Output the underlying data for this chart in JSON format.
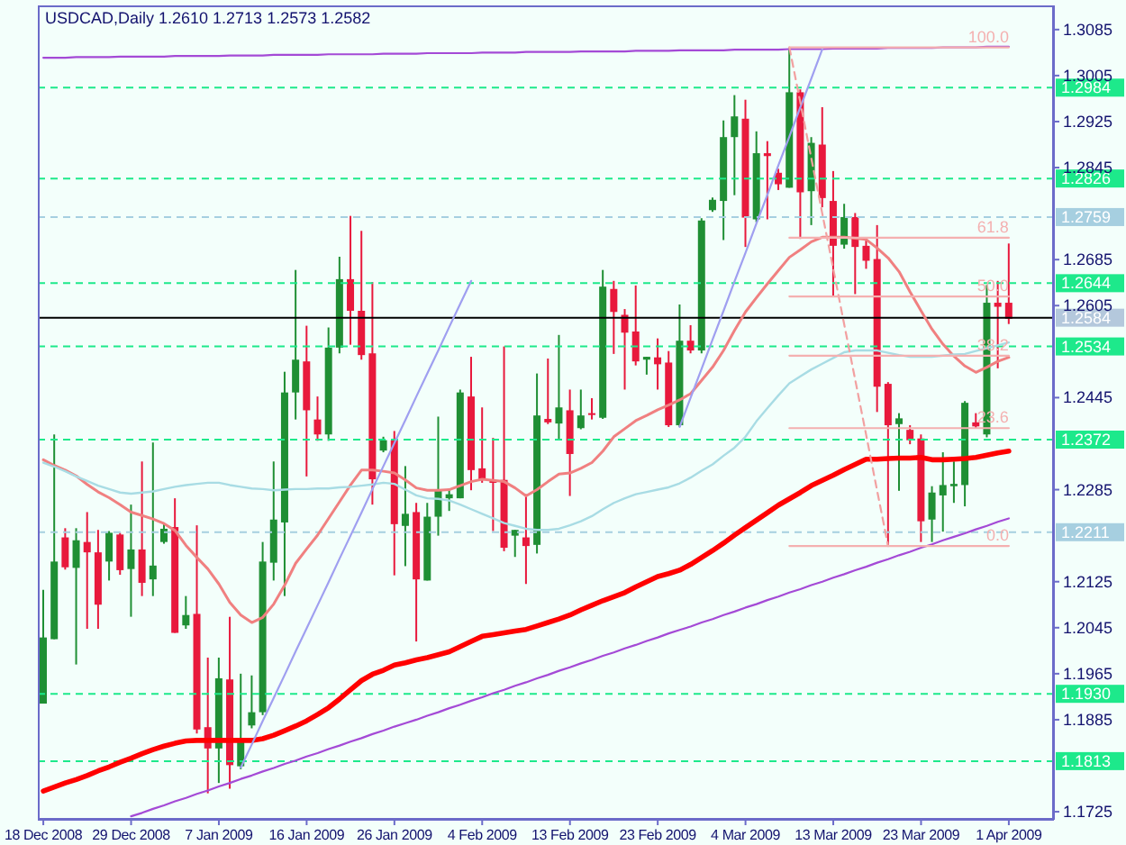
{
  "chart_data": {
    "type": "candlestick",
    "title": "USDCAD,Daily 1.2610 1.2713 1.2573 1.2582",
    "categories": [
      "18 Dec 2008",
      null,
      null,
      null,
      null,
      null,
      null,
      null,
      "29 Dec 2008",
      null,
      null,
      null,
      null,
      null,
      null,
      null,
      "7 Jan 2009",
      null,
      null,
      null,
      null,
      null,
      null,
      null,
      "16 Jan 2009",
      null,
      null,
      null,
      null,
      null,
      null,
      null,
      "26 Jan 2009",
      null,
      null,
      null,
      null,
      null,
      null,
      null,
      "4 Feb 2009",
      null,
      null,
      null,
      null,
      null,
      null,
      null,
      "13 Feb 2009",
      null,
      null,
      null,
      null,
      null,
      null,
      null,
      "23 Feb 2009",
      null,
      null,
      null,
      null,
      null,
      null,
      null,
      "4 Mar 2009",
      null,
      null,
      null,
      null,
      null,
      null,
      null,
      "13 Mar 2009",
      null,
      null,
      null,
      null,
      null,
      null,
      null,
      "23 Mar 2009",
      null,
      null,
      null,
      null,
      null,
      null,
      null,
      "1 Apr 2009"
    ],
    "ohlc": [
      [
        1.1913,
        1.2111,
        1.1913,
        1.2028
      ],
      [
        1.2025,
        1.2381,
        1.2025,
        1.216
      ],
      [
        1.2202,
        1.2218,
        1.2146,
        1.215
      ],
      [
        1.2149,
        1.2218,
        1.1981,
        1.2197
      ],
      [
        1.2194,
        1.2246,
        1.2043,
        1.2176
      ],
      [
        1.2176,
        1.2215,
        1.2043,
        1.2085
      ],
      [
        1.216,
        1.2213,
        1.2127,
        1.221
      ],
      [
        1.2207,
        1.221,
        1.2137,
        1.2145
      ],
      [
        1.2147,
        1.2259,
        1.2064,
        1.2181
      ],
      [
        1.2181,
        1.2334,
        1.21,
        1.2123
      ],
      [
        1.2129,
        1.2367,
        1.21,
        1.2153
      ],
      [
        1.2194,
        1.2226,
        1.2191,
        1.2217
      ],
      [
        1.222,
        1.227,
        1.2036,
        1.2036
      ],
      [
        1.2049,
        1.21,
        1.2043,
        1.2067
      ],
      [
        1.2069,
        1.2223,
        1.1861,
        1.1868
      ],
      [
        1.1872,
        1.1993,
        1.1757,
        1.1835
      ],
      [
        1.1835,
        1.1993,
        1.1775,
        1.1957
      ],
      [
        1.1955,
        1.2064,
        1.1765,
        1.1806
      ],
      [
        1.1804,
        1.1965,
        1.1799,
        1.1848
      ],
      [
        1.1875,
        1.1962,
        1.187,
        1.1898
      ],
      [
        1.1898,
        1.2194,
        1.1893,
        1.216
      ],
      [
        1.2158,
        1.2334,
        1.2127,
        1.2233
      ],
      [
        1.2228,
        1.249,
        1.21,
        1.2454
      ],
      [
        1.2454,
        1.2667,
        1.2407,
        1.2511
      ],
      [
        1.2508,
        1.257,
        1.2308,
        1.2423
      ],
      [
        1.2407,
        1.2447,
        1.237,
        1.2381
      ],
      [
        1.2381,
        1.2567,
        1.237,
        1.2532
      ],
      [
        1.2532,
        1.269,
        1.2522,
        1.2651
      ],
      [
        1.2651,
        1.2761,
        1.2537,
        1.2596
      ],
      [
        1.2596,
        1.2735,
        1.2511,
        1.2519
      ],
      [
        1.2522,
        1.2646,
        1.2259,
        1.2303
      ],
      [
        1.2353,
        1.2377,
        1.235,
        1.2371
      ],
      [
        1.2371,
        1.2387,
        1.2136,
        1.2225
      ],
      [
        1.2222,
        1.2326,
        1.2152,
        1.2243
      ],
      [
        1.2246,
        1.2262,
        1.2021,
        1.2129
      ],
      [
        1.2127,
        1.2262,
        1.2127,
        1.2238
      ],
      [
        1.2238,
        1.2412,
        1.2205,
        1.2285
      ],
      [
        1.227,
        1.2287,
        1.2248,
        1.2277
      ],
      [
        1.227,
        1.2459,
        1.227,
        1.2454
      ],
      [
        1.2447,
        1.2516,
        1.2284,
        1.2319
      ],
      [
        1.2322,
        1.2428,
        1.2297,
        1.2303
      ],
      [
        1.23,
        1.2375,
        1.2213,
        1.2297
      ],
      [
        1.2302,
        1.2534,
        1.2178,
        1.2184
      ],
      [
        1.2205,
        1.2215,
        1.2168,
        1.2215
      ],
      [
        1.2202,
        1.2277,
        1.2121,
        1.2187
      ],
      [
        1.2189,
        1.2487,
        1.2174,
        1.2414
      ],
      [
        1.2408,
        1.2513,
        1.2399,
        1.2402
      ],
      [
        1.24,
        1.2554,
        1.2373,
        1.2428
      ],
      [
        1.2423,
        1.2459,
        1.2274,
        1.2347
      ],
      [
        1.2392,
        1.2459,
        1.239,
        1.2414
      ],
      [
        1.2418,
        1.2444,
        1.2407,
        1.2415
      ],
      [
        1.241,
        1.2667,
        1.2408,
        1.2638
      ],
      [
        1.2634,
        1.2648,
        1.2521,
        1.2594
      ],
      [
        1.2589,
        1.2599,
        1.2459,
        1.2558
      ],
      [
        1.256,
        1.264,
        1.2501,
        1.2508
      ],
      [
        1.2511,
        1.2516,
        1.2485,
        1.2516
      ],
      [
        1.2515,
        1.2548,
        1.2459,
        1.2503
      ],
      [
        1.2506,
        1.2526,
        1.2394,
        1.2397
      ],
      [
        1.2397,
        1.2607,
        1.2394,
        1.2544
      ],
      [
        1.2544,
        1.2571,
        1.2522,
        1.2527
      ],
      [
        1.2527,
        1.2757,
        1.2522,
        1.2753
      ],
      [
        1.2771,
        1.2793,
        1.2768,
        1.2789
      ],
      [
        1.2787,
        1.2927,
        1.2719,
        1.2898
      ],
      [
        1.2898,
        1.2971,
        1.2797,
        1.2934
      ],
      [
        1.293,
        1.2963,
        1.2707,
        1.2758
      ],
      [
        1.2755,
        1.2908,
        1.275,
        1.287
      ],
      [
        1.287,
        1.2891,
        1.2755,
        1.2865
      ],
      [
        1.2836,
        1.2843,
        1.2806,
        1.2816
      ],
      [
        1.281,
        1.3054,
        1.281,
        1.2976
      ],
      [
        1.2976,
        1.2981,
        1.2721,
        1.2802
      ],
      [
        1.2804,
        1.2898,
        1.2745,
        1.2888
      ],
      [
        1.2885,
        1.295,
        1.2776,
        1.2792
      ],
      [
        1.2787,
        1.2839,
        1.262,
        1.2709
      ],
      [
        1.2711,
        1.2782,
        1.2704,
        1.2759
      ],
      [
        1.2759,
        1.2766,
        1.2625,
        1.2707
      ],
      [
        1.2709,
        1.2724,
        1.2669,
        1.2683
      ],
      [
        1.2686,
        1.2745,
        1.242,
        1.2464
      ],
      [
        1.2469,
        1.2472,
        1.2187,
        1.2397
      ],
      [
        1.2399,
        1.2418,
        1.2283,
        1.2409
      ],
      [
        1.2389,
        1.2397,
        1.2364,
        1.2371
      ],
      [
        1.2374,
        1.2381,
        1.2194,
        1.223
      ],
      [
        1.2233,
        1.2291,
        1.2194,
        1.228
      ],
      [
        1.2275,
        1.235,
        1.2212,
        1.2293
      ],
      [
        1.2291,
        1.2334,
        1.2262,
        1.2295
      ],
      [
        1.2293,
        1.2439,
        1.2256,
        1.2436
      ],
      [
        1.2402,
        1.2418,
        1.2392,
        1.2395
      ],
      [
        1.2381,
        1.2641,
        1.2376,
        1.261
      ],
      [
        1.261,
        1.2648,
        1.2496,
        1.2603
      ],
      [
        1.261,
        1.2713,
        1.2573,
        1.2582
      ]
    ],
    "colors": [
      "#1f8f34",
      "#1f8f34",
      "#e8193c",
      "#1f8f34",
      "#e8193c",
      "#e8193c",
      "#1f8f34",
      "#e8193c",
      "#1f8f34",
      "#e8193c",
      "#1f8f34",
      "#1f8f34",
      "#e8193c",
      "#1f8f34",
      "#e8193c",
      "#e8193c",
      "#1f8f34",
      "#e8193c",
      "#1f8f34",
      "#1f8f34",
      "#1f8f34",
      "#1f8f34",
      "#1f8f34",
      "#1f8f34",
      "#e8193c",
      "#e8193c",
      "#1f8f34",
      "#1f8f34",
      "#e8193c",
      "#e8193c",
      "#e8193c",
      "#1f8f34",
      "#e8193c",
      "#1f8f34",
      "#e8193c",
      "#1f8f34",
      "#1f8f34",
      "#1f8f34",
      "#1f8f34",
      "#e8193c",
      "#e8193c",
      "#e8193c",
      "#e8193c",
      "#1f8f34",
      "#e8193c",
      "#1f8f34",
      "#e8193c",
      "#1f8f34",
      "#e8193c",
      "#1f8f34",
      "#e8193c",
      "#1f8f34",
      "#e8193c",
      "#e8193c",
      "#e8193c",
      "#1f8f34",
      "#e8193c",
      "#e8193c",
      "#1f8f34",
      "#e8193c",
      "#1f8f34",
      "#1f8f34",
      "#1f8f34",
      "#1f8f34",
      "#e8193c",
      "#1f8f34",
      "#e8193c",
      "#e8193c",
      "#1f8f34",
      "#e8193c",
      "#1f8f34",
      "#e8193c",
      "#e8193c",
      "#1f8f34",
      "#e8193c",
      "#e8193c",
      "#e8193c",
      "#e8193c",
      "#1f8f34",
      "#e8193c",
      "#e8193c",
      "#1f8f34",
      "#1f8f34",
      "#1f8f34",
      "#1f8f34",
      "#e8193c",
      "#1f8f34",
      "#e8193c",
      "#e8193c"
    ],
    "series": [
      {
        "type": "line",
        "color": "#ff0000",
        "values": [
          1.1761,
          1.1768,
          1.1775,
          1.1781,
          1.1788,
          1.1796,
          1.1803,
          1.1811,
          1.1818,
          1.1826,
          1.1833,
          1.1839,
          1.1844,
          1.1848,
          1.1849,
          1.1849,
          1.1849,
          1.1849,
          1.1849,
          1.1849,
          1.1852,
          1.1858,
          1.1866,
          1.1874,
          1.1883,
          1.1894,
          1.1906,
          1.1921,
          1.1937,
          1.1953,
          1.1964,
          1.1971,
          1.198,
          1.1984,
          1.1989,
          1.1993,
          1.1998,
          1.2003,
          1.2012,
          1.2021,
          1.203,
          1.2033,
          1.2036,
          1.2039,
          1.2042,
          1.2048,
          1.2054,
          1.206,
          1.2067,
          1.2076,
          1.2084,
          1.2092,
          1.2099,
          1.2106,
          1.2116,
          1.2125,
          1.2134,
          1.2139,
          1.2145,
          1.2155,
          1.2167,
          1.2179,
          1.2192,
          1.2206,
          1.2219,
          1.2232,
          1.2245,
          1.2258,
          1.2269,
          1.228,
          1.2292,
          1.2301,
          1.231,
          1.232,
          1.2329,
          1.2338,
          1.2338,
          1.2339,
          1.234,
          1.234,
          1.2341,
          1.2337,
          1.2337,
          1.2338,
          1.2339,
          1.2341,
          1.2345,
          1.2349,
          1.2352
        ]
      },
      {
        "type": "line",
        "color": "#f08080",
        "values": [
          1.2337,
          1.2327,
          1.2319,
          1.2309,
          1.2294,
          1.2281,
          1.2271,
          1.2259,
          1.2246,
          1.224,
          1.2234,
          1.2226,
          1.2214,
          1.2188,
          1.2167,
          1.2147,
          1.2121,
          1.2089,
          1.2067,
          1.2054,
          1.2063,
          1.2086,
          1.2119,
          1.2157,
          1.2182,
          1.2206,
          1.2235,
          1.2264,
          1.2293,
          1.2319,
          1.2319,
          1.2317,
          1.2314,
          1.2302,
          1.2288,
          1.2284,
          1.2284,
          1.2285,
          1.2292,
          1.2299,
          1.2303,
          1.2301,
          1.2299,
          1.2288,
          1.2274,
          1.2285,
          1.2299,
          1.2312,
          1.2314,
          1.2322,
          1.2332,
          1.2352,
          1.2377,
          1.2391,
          1.2405,
          1.2414,
          1.2424,
          1.2432,
          1.2441,
          1.2452,
          1.2475,
          1.2498,
          1.2527,
          1.2562,
          1.2594,
          1.2619,
          1.2643,
          1.2666,
          1.2689,
          1.2702,
          1.2716,
          1.2724,
          1.2724,
          1.2724,
          1.2722,
          1.272,
          1.2705,
          1.2688,
          1.2664,
          1.2629,
          1.2596,
          1.2564,
          1.2538,
          1.2517,
          1.25,
          1.2489,
          1.2498,
          1.2508,
          1.2515
        ]
      },
      {
        "type": "line",
        "color": "#a8dce4",
        "values": [
          1.2332,
          1.2325,
          1.2317,
          1.2308,
          1.23,
          1.2292,
          1.2286,
          1.228,
          1.2278,
          1.228,
          1.2282,
          1.2286,
          1.229,
          1.2293,
          1.2295,
          1.2297,
          1.2297,
          1.2293,
          1.229,
          1.2287,
          1.2286,
          1.2284,
          1.2285,
          1.2286,
          1.2286,
          1.2287,
          1.2287,
          1.2289,
          1.229,
          1.2292,
          1.2294,
          1.2297,
          1.2295,
          1.2285,
          1.2275,
          1.227,
          1.2269,
          1.2266,
          1.2259,
          1.2251,
          1.2243,
          1.2235,
          1.2227,
          1.2222,
          1.2217,
          1.2215,
          1.2215,
          1.2217,
          1.2223,
          1.223,
          1.2239,
          1.2251,
          1.2262,
          1.227,
          1.2277,
          1.2281,
          1.2285,
          1.2289,
          1.2296,
          1.2306,
          1.2318,
          1.2329,
          1.2344,
          1.2358,
          1.2377,
          1.2404,
          1.2427,
          1.2449,
          1.247,
          1.2482,
          1.2494,
          1.2504,
          1.2514,
          1.2524,
          1.2527,
          1.2527,
          1.2527,
          1.2523,
          1.2519,
          1.2516,
          1.2516,
          1.2516,
          1.2518,
          1.252,
          1.2521,
          1.2526,
          1.2531,
          1.2536,
          1.2541
        ]
      },
      {
        "type": "line",
        "color": "#a44ad6",
        "values": [
          1.3036,
          1.3036,
          1.3036,
          1.3037,
          1.3037,
          1.3037,
          1.3037,
          1.3038,
          1.3038,
          1.3038,
          1.3038,
          1.3038,
          1.3039,
          1.3039,
          1.3039,
          1.3039,
          1.3039,
          1.304,
          1.304,
          1.304,
          1.304,
          1.3041,
          1.3041,
          1.3041,
          1.3041,
          1.3041,
          1.3042,
          1.3042,
          1.3042,
          1.3042,
          1.3042,
          1.3043,
          1.3043,
          1.3043,
          1.3043,
          1.3044,
          1.3044,
          1.3044,
          1.3044,
          1.3044,
          1.3045,
          1.3045,
          1.3045,
          1.3045,
          1.3046,
          1.3046,
          1.3046,
          1.3046,
          1.3046,
          1.3047,
          1.3047,
          1.3047,
          1.3047,
          1.3047,
          1.3048,
          1.3048,
          1.3048,
          1.3048,
          1.3049,
          1.3049,
          1.3049,
          1.3049,
          1.3049,
          1.305,
          1.305,
          1.305,
          1.305,
          1.305,
          1.3051,
          1.3051,
          1.3051,
          1.3051,
          1.3052,
          1.3052,
          1.3052,
          1.3052,
          1.3052,
          1.3053,
          1.3053,
          1.3053,
          1.3053,
          1.3053,
          1.3054,
          1.3054,
          1.3054,
          1.3054,
          1.3055,
          1.3055,
          1.3055
        ]
      },
      {
        "type": "line",
        "color": "#a44ad6",
        "values": [
          null,
          null,
          null,
          null,
          null,
          null,
          null,
          null,
          1.1717,
          1.1723,
          1.173,
          1.1736,
          1.1743,
          1.1749,
          1.1756,
          1.1762,
          1.1769,
          1.1775,
          1.1782,
          1.1788,
          1.1795,
          1.1801,
          1.1808,
          1.1814,
          1.1821,
          1.1827,
          1.1834,
          1.184,
          1.1847,
          1.1853,
          1.186,
          1.1866,
          1.1873,
          1.1879,
          1.1885,
          1.1892,
          1.1898,
          1.1905,
          1.1911,
          1.1918,
          1.1924,
          1.1931,
          1.1937,
          1.1944,
          1.195,
          1.1957,
          1.1963,
          1.197,
          1.1976,
          1.1983,
          1.1989,
          1.1996,
          1.2002,
          1.2009,
          1.2015,
          1.2022,
          1.2028,
          1.2035,
          1.2041,
          1.2047,
          1.2054,
          1.206,
          1.2067,
          1.2073,
          1.208,
          1.2086,
          1.2093,
          1.2099,
          1.2106,
          1.2112,
          1.2119,
          1.2125,
          1.2132,
          1.2138,
          1.2145,
          1.2151,
          1.2158,
          1.2164,
          1.2171,
          1.2177,
          1.2184,
          1.219,
          1.2197,
          1.2203,
          1.2209,
          1.2216,
          1.2222,
          1.2229,
          1.2235
        ]
      },
      {
        "type": "line",
        "color": "#9f9ff0",
        "values": [
          null,
          null,
          null,
          null,
          null,
          null,
          null,
          null,
          null,
          null,
          null,
          null,
          null,
          null,
          null,
          null,
          null,
          null,
          1.1802,
          1.1842,
          1.1883,
          1.1923,
          1.1963,
          1.2004,
          1.2044,
          1.2084,
          1.2124,
          1.2165,
          1.2205,
          1.2245,
          1.2286,
          1.2326,
          1.2366,
          1.2406,
          1.2447,
          1.2487,
          1.2527,
          1.2568,
          1.2608,
          1.2648,
          null,
          null,
          null,
          null,
          null,
          null,
          null,
          null,
          null,
          null,
          null,
          null,
          null,
          null,
          null,
          null,
          null,
          null,
          null,
          null,
          null,
          null,
          null,
          null,
          null,
          null,
          null,
          null,
          null,
          null,
          null,
          null,
          null,
          null,
          null,
          null,
          null,
          null,
          null,
          null,
          null,
          null,
          null,
          null,
          null,
          null,
          null,
          null,
          null
        ]
      },
      {
        "type": "line",
        "color": "#9f9ff0",
        "values": [
          null,
          null,
          null,
          null,
          null,
          null,
          null,
          null,
          null,
          null,
          null,
          null,
          null,
          null,
          null,
          null,
          null,
          null,
          null,
          null,
          null,
          null,
          null,
          null,
          null,
          null,
          null,
          null,
          null,
          null,
          null,
          null,
          null,
          null,
          null,
          null,
          null,
          null,
          null,
          null,
          null,
          null,
          null,
          null,
          null,
          null,
          null,
          null,
          null,
          null,
          null,
          null,
          null,
          null,
          null,
          null,
          null,
          null,
          1.2394,
          1.2445,
          1.2495,
          1.2546,
          1.2596,
          1.2647,
          1.2697,
          1.2748,
          1.2798,
          1.2849,
          1.2899,
          1.295,
          1.3,
          1.3051,
          null,
          null,
          null,
          null,
          null,
          null,
          null,
          null,
          null,
          null,
          null,
          null,
          null,
          null,
          null,
          null,
          null
        ]
      },
      {
        "type": "line",
        "color": "#f2a0a0",
        "line_style": "dashed",
        "values": [
          null,
          null,
          null,
          null,
          null,
          null,
          null,
          null,
          null,
          null,
          null,
          null,
          null,
          null,
          null,
          null,
          null,
          null,
          null,
          null,
          null,
          null,
          null,
          null,
          null,
          null,
          null,
          null,
          null,
          null,
          null,
          null,
          null,
          null,
          null,
          null,
          null,
          null,
          null,
          null,
          null,
          null,
          null,
          null,
          null,
          null,
          null,
          null,
          null,
          null,
          null,
          null,
          null,
          null,
          null,
          null,
          null,
          null,
          null,
          null,
          null,
          null,
          null,
          null,
          null,
          null,
          null,
          null,
          1.3054,
          1.2958,
          1.2861,
          1.2765,
          1.2669,
          1.2572,
          1.2476,
          1.238,
          1.2283,
          1.2187,
          null,
          null,
          null,
          null,
          null,
          null,
          null,
          null,
          null,
          null,
          null
        ]
      },
      {
        "type": "line",
        "name": "100.0",
        "color": "#f4b0b0",
        "values": [
          null,
          null,
          null,
          null,
          null,
          null,
          null,
          null,
          null,
          null,
          null,
          null,
          null,
          null,
          null,
          null,
          null,
          null,
          null,
          null,
          null,
          null,
          null,
          null,
          null,
          null,
          null,
          null,
          null,
          null,
          null,
          null,
          null,
          null,
          null,
          null,
          null,
          null,
          null,
          null,
          null,
          null,
          null,
          null,
          null,
          null,
          null,
          null,
          null,
          null,
          null,
          null,
          null,
          null,
          null,
          null,
          null,
          null,
          null,
          null,
          null,
          null,
          null,
          null,
          null,
          null,
          null,
          null,
          1.3054,
          1.3054,
          1.3054,
          1.3054,
          1.3054,
          1.3054,
          1.3054,
          1.3054,
          1.3054,
          1.3054,
          1.3054,
          1.3054,
          1.3054,
          1.3054,
          1.3054,
          1.3054,
          1.3054,
          1.3054,
          1.3054,
          1.3054,
          1.3054
        ]
      },
      {
        "type": "line",
        "name": "61.8",
        "color": "#f4b0b0",
        "values": [
          null,
          null,
          null,
          null,
          null,
          null,
          null,
          null,
          null,
          null,
          null,
          null,
          null,
          null,
          null,
          null,
          null,
          null,
          null,
          null,
          null,
          null,
          null,
          null,
          null,
          null,
          null,
          null,
          null,
          null,
          null,
          null,
          null,
          null,
          null,
          null,
          null,
          null,
          null,
          null,
          null,
          null,
          null,
          null,
          null,
          null,
          null,
          null,
          null,
          null,
          null,
          null,
          null,
          null,
          null,
          null,
          null,
          null,
          null,
          null,
          null,
          null,
          null,
          null,
          null,
          null,
          null,
          null,
          1.2723,
          1.2723,
          1.2723,
          1.2723,
          1.2723,
          1.2723,
          1.2723,
          1.2723,
          1.2723,
          1.2723,
          1.2723,
          1.2723,
          1.2723,
          1.2723,
          1.2723,
          1.2723,
          1.2723,
          1.2723,
          1.2723,
          1.2723,
          1.2723
        ]
      },
      {
        "type": "line",
        "name": "50.0",
        "color": "#f4b0b0",
        "values": [
          null,
          null,
          null,
          null,
          null,
          null,
          null,
          null,
          null,
          null,
          null,
          null,
          null,
          null,
          null,
          null,
          null,
          null,
          null,
          null,
          null,
          null,
          null,
          null,
          null,
          null,
          null,
          null,
          null,
          null,
          null,
          null,
          null,
          null,
          null,
          null,
          null,
          null,
          null,
          null,
          null,
          null,
          null,
          null,
          null,
          null,
          null,
          null,
          null,
          null,
          null,
          null,
          null,
          null,
          null,
          null,
          null,
          null,
          null,
          null,
          null,
          null,
          null,
          null,
          null,
          null,
          null,
          null,
          1.2621,
          1.2621,
          1.2621,
          1.2621,
          1.2621,
          1.2621,
          1.2621,
          1.2621,
          1.2621,
          1.2621,
          1.2621,
          1.2621,
          1.2621,
          1.2621,
          1.2621,
          1.2621,
          1.2621,
          1.2621,
          1.2621,
          1.2621,
          1.2621
        ]
      },
      {
        "type": "line",
        "name": "38.2",
        "color": "#f4b0b0",
        "values": [
          null,
          null,
          null,
          null,
          null,
          null,
          null,
          null,
          null,
          null,
          null,
          null,
          null,
          null,
          null,
          null,
          null,
          null,
          null,
          null,
          null,
          null,
          null,
          null,
          null,
          null,
          null,
          null,
          null,
          null,
          null,
          null,
          null,
          null,
          null,
          null,
          null,
          null,
          null,
          null,
          null,
          null,
          null,
          null,
          null,
          null,
          null,
          null,
          null,
          null,
          null,
          null,
          null,
          null,
          null,
          null,
          null,
          null,
          null,
          null,
          null,
          null,
          null,
          null,
          null,
          null,
          null,
          null,
          1.2518,
          1.2518,
          1.2518,
          1.2518,
          1.2518,
          1.2518,
          1.2518,
          1.2518,
          1.2518,
          1.2518,
          1.2518,
          1.2518,
          1.2518,
          1.2518,
          1.2518,
          1.2518,
          1.2518,
          1.2518,
          1.2518,
          1.2518,
          1.2518
        ]
      },
      {
        "type": "line",
        "name": "23.6",
        "color": "#f4b0b0",
        "values": [
          null,
          null,
          null,
          null,
          null,
          null,
          null,
          null,
          null,
          null,
          null,
          null,
          null,
          null,
          null,
          null,
          null,
          null,
          null,
          null,
          null,
          null,
          null,
          null,
          null,
          null,
          null,
          null,
          null,
          null,
          null,
          null,
          null,
          null,
          null,
          null,
          null,
          null,
          null,
          null,
          null,
          null,
          null,
          null,
          null,
          null,
          null,
          null,
          null,
          null,
          null,
          null,
          null,
          null,
          null,
          null,
          null,
          null,
          null,
          null,
          null,
          null,
          null,
          null,
          null,
          null,
          null,
          null,
          1.2392,
          1.2392,
          1.2392,
          1.2392,
          1.2392,
          1.2392,
          1.2392,
          1.2392,
          1.2392,
          1.2392,
          1.2392,
          1.2392,
          1.2392,
          1.2392,
          1.2392,
          1.2392,
          1.2392,
          1.2392,
          1.2392,
          1.2392,
          1.2392
        ]
      },
      {
        "type": "line",
        "name": "0.0",
        "color": "#f4b0b0",
        "values": [
          null,
          null,
          null,
          null,
          null,
          null,
          null,
          null,
          null,
          null,
          null,
          null,
          null,
          null,
          null,
          null,
          null,
          null,
          null,
          null,
          null,
          null,
          null,
          null,
          null,
          null,
          null,
          null,
          null,
          null,
          null,
          null,
          null,
          null,
          null,
          null,
          null,
          null,
          null,
          null,
          null,
          null,
          null,
          null,
          null,
          null,
          null,
          null,
          null,
          null,
          null,
          null,
          null,
          null,
          null,
          null,
          null,
          null,
          null,
          null,
          null,
          null,
          null,
          null,
          null,
          null,
          null,
          null,
          1.2187,
          1.2187,
          1.2187,
          1.2187,
          1.2187,
          1.2187,
          1.2187,
          1.2187,
          1.2187,
          1.2187,
          1.2187,
          1.2187,
          1.2187,
          1.2187,
          1.2187,
          1.2187,
          1.2187,
          1.2187,
          1.2187,
          1.2187,
          1.2187
        ]
      }
    ],
    "ref_lines": [
      {
        "axis": "y",
        "value": 1.2984,
        "label": "1.2984",
        "color": "#1de98b",
        "line_style": "dashed"
      },
      {
        "axis": "y",
        "value": 1.2826,
        "label": "1.2826",
        "color": "#1de98b",
        "line_style": "dashed"
      },
      {
        "axis": "y",
        "value": 1.2759,
        "label": "1.2759",
        "color": "#a6cfe0",
        "line_style": "dashed"
      },
      {
        "axis": "y",
        "value": 1.2644,
        "label": "1.2644",
        "color": "#1de98b",
        "line_style": "dashed"
      },
      {
        "axis": "y",
        "value": 1.2584,
        "label": "1.2584",
        "color": "#000000",
        "line_style": "solid"
      },
      {
        "axis": "y",
        "value": 1.2534,
        "label": "1.2534",
        "color": "#1de98b",
        "line_style": "dashed"
      },
      {
        "axis": "y",
        "value": 1.2372,
        "label": "1.2372",
        "color": "#1de98b",
        "line_style": "dashed"
      },
      {
        "axis": "y",
        "value": 1.2211,
        "label": "1.2211",
        "color": "#a6cfe0",
        "line_style": "dashed"
      },
      {
        "axis": "y",
        "value": 1.193,
        "label": "1.1930",
        "color": "#1de98b",
        "line_style": "dashed"
      },
      {
        "axis": "y",
        "value": 1.1813,
        "label": "1.1813",
        "color": "#1de98b",
        "line_style": "dashed"
      }
    ],
    "ylim": [
      1.1711,
      1.3127
    ],
    "yticks": [
      1.1725,
      1.1885,
      1.1965,
      1.2045,
      1.2125,
      1.2285,
      1.2445,
      1.2605,
      1.2685,
      1.2845,
      1.2925,
      1.3005,
      1.3085
    ]
  }
}
